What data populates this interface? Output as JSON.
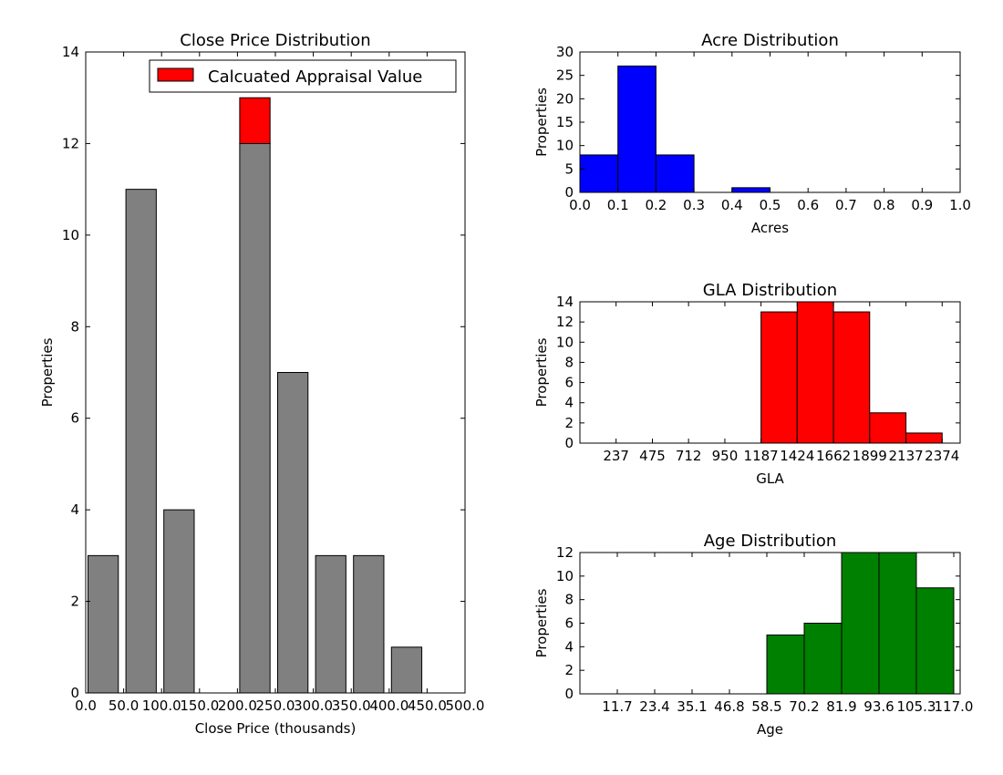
{
  "chart_data": [
    {
      "type": "bar",
      "title": "Close Price Distribution",
      "xlabel": "Close Price (thousands)",
      "ylabel": "Properties",
      "xlim": [
        0,
        500
      ],
      "ylim": [
        0,
        14
      ],
      "xticks": [
        "0.0",
        "50.0",
        "100.0",
        "150.0",
        "200.0",
        "250.0",
        "300.0",
        "350.0",
        "400.0",
        "450.0",
        "500.0"
      ],
      "yticks": [
        "0",
        "2",
        "4",
        "6",
        "8",
        "10",
        "12",
        "14"
      ],
      "legend": {
        "placement": "top-right",
        "entries": [
          {
            "label": "Calcuated Appraisal Value",
            "color": "#ff0000"
          }
        ]
      },
      "series": [
        {
          "color": "#808080",
          "bars": [
            {
              "x0": 3,
              "x1": 43,
              "value": 3
            },
            {
              "x0": 53,
              "x1": 93,
              "value": 11
            },
            {
              "x0": 103,
              "x1": 143,
              "value": 4
            },
            {
              "x0": 203,
              "x1": 243,
              "value": 12
            },
            {
              "x0": 253,
              "x1": 293,
              "value": 7
            },
            {
              "x0": 303,
              "x1": 343,
              "value": 3
            },
            {
              "x0": 353,
              "x1": 393,
              "value": 3
            },
            {
              "x0": 403,
              "x1": 443,
              "value": 1
            }
          ]
        },
        {
          "name": "Calcuated Appraisal Value",
          "color": "#ff0000",
          "bars": [
            {
              "x0": 203,
              "x1": 243,
              "base": 12,
              "value": 1
            }
          ]
        }
      ]
    },
    {
      "type": "bar",
      "title": "Acre Distribution",
      "xlabel": "Acres",
      "ylabel": "Properties",
      "xlim": [
        0,
        1
      ],
      "ylim": [
        0,
        30
      ],
      "xticks": [
        "0.0",
        "0.1",
        "0.2",
        "0.3",
        "0.4",
        "0.5",
        "0.6",
        "0.7",
        "0.8",
        "0.9",
        "1.0"
      ],
      "yticks": [
        "0",
        "5",
        "10",
        "15",
        "20",
        "25",
        "30"
      ],
      "series": [
        {
          "color": "#0000ff",
          "bars": [
            {
              "x0": 0.0,
              "x1": 0.1,
              "value": 8
            },
            {
              "x0": 0.1,
              "x1": 0.2,
              "value": 27
            },
            {
              "x0": 0.2,
              "x1": 0.3,
              "value": 8
            },
            {
              "x0": 0.3,
              "x1": 0.4,
              "value": 0
            },
            {
              "x0": 0.4,
              "x1": 0.5,
              "value": 1
            },
            {
              "x0": 0.5,
              "x1": 0.6,
              "value": 0
            },
            {
              "x0": 0.6,
              "x1": 0.7,
              "value": 0
            },
            {
              "x0": 0.7,
              "x1": 0.8,
              "value": 0
            },
            {
              "x0": 0.8,
              "x1": 0.9,
              "value": 0
            },
            {
              "x0": 0.9,
              "x1": 1.0,
              "value": 0
            }
          ]
        }
      ]
    },
    {
      "type": "bar",
      "title": "GLA Distribution",
      "xlabel": "GLA",
      "ylabel": "Properties",
      "xlim": [
        0,
        2492
      ],
      "ylim": [
        0,
        14
      ],
      "xticks": [
        "237",
        "475",
        "712",
        "950",
        "1187",
        "1424",
        "1662",
        "1899",
        "2137",
        "2374"
      ],
      "xtick_values": [
        237,
        475,
        712,
        950,
        1187,
        1424,
        1662,
        1899,
        2137,
        2374
      ],
      "yticks": [
        "0",
        "2",
        "4",
        "6",
        "8",
        "10",
        "12",
        "14"
      ],
      "series": [
        {
          "color": "#ff0000",
          "bars": [
            {
              "x0": 237,
              "x1": 475,
              "value": 0
            },
            {
              "x0": 475,
              "x1": 712,
              "value": 0
            },
            {
              "x0": 712,
              "x1": 950,
              "value": 0
            },
            {
              "x0": 950,
              "x1": 1187,
              "value": 0
            },
            {
              "x0": 1187,
              "x1": 1424,
              "value": 13
            },
            {
              "x0": 1424,
              "x1": 1662,
              "value": 14
            },
            {
              "x0": 1662,
              "x1": 1899,
              "value": 13
            },
            {
              "x0": 1899,
              "x1": 2137,
              "value": 3
            },
            {
              "x0": 2137,
              "x1": 2374,
              "value": 1
            }
          ]
        }
      ]
    },
    {
      "type": "bar",
      "title": "Age Distribution",
      "xlabel": "Age",
      "ylabel": "Properties",
      "xlim": [
        0,
        119
      ],
      "ylim": [
        0,
        12
      ],
      "xticks": [
        "11.7",
        "23.4",
        "35.1",
        "46.8",
        "58.5",
        "70.2",
        "81.9",
        "93.6",
        "105.3",
        "117.0"
      ],
      "xtick_values": [
        11.7,
        23.4,
        35.1,
        46.8,
        58.5,
        70.2,
        81.9,
        93.6,
        105.3,
        117.0
      ],
      "yticks": [
        "0",
        "2",
        "4",
        "6",
        "8",
        "10",
        "12"
      ],
      "series": [
        {
          "color": "#008000",
          "bars": [
            {
              "x0": 11.7,
              "x1": 23.4,
              "value": 0
            },
            {
              "x0": 23.4,
              "x1": 35.1,
              "value": 0
            },
            {
              "x0": 35.1,
              "x1": 46.8,
              "value": 0
            },
            {
              "x0": 46.8,
              "x1": 58.5,
              "value": 0
            },
            {
              "x0": 58.5,
              "x1": 70.2,
              "value": 5
            },
            {
              "x0": 70.2,
              "x1": 81.9,
              "value": 6
            },
            {
              "x0": 81.9,
              "x1": 93.6,
              "value": 12
            },
            {
              "x0": 93.6,
              "x1": 105.3,
              "value": 12
            },
            {
              "x0": 105.3,
              "x1": 117.0,
              "value": 9
            }
          ]
        }
      ]
    }
  ]
}
